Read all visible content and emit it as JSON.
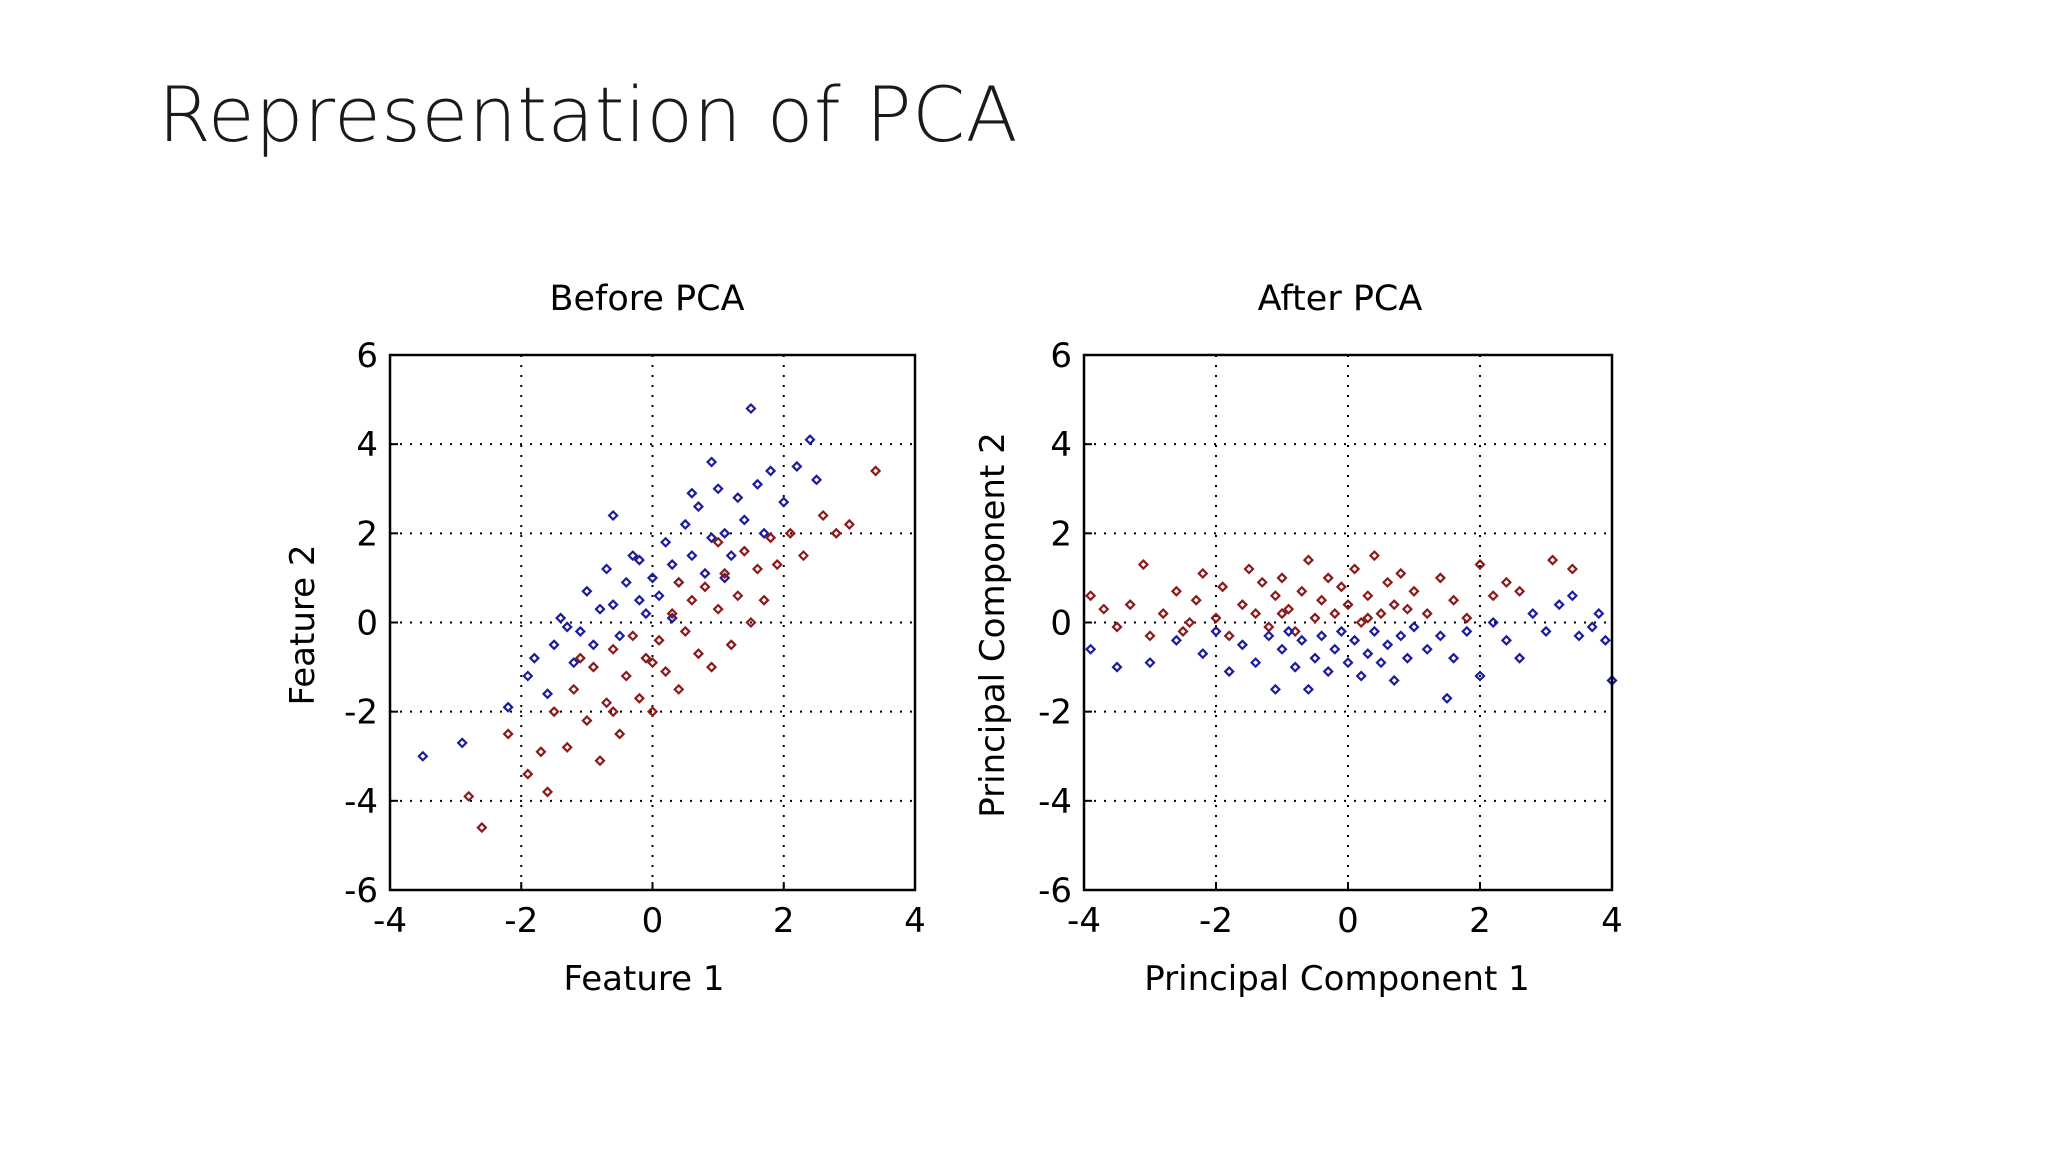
{
  "slide": {
    "title": "Representation of PCA"
  },
  "colors": {
    "class_a": "#8b1a1a",
    "class_b": "#1c1c9c"
  },
  "chart_data": [
    {
      "type": "scatter",
      "title": "Before PCA",
      "xlabel": "Feature 1",
      "ylabel": "Feature 2",
      "xlim": [
        -4,
        4
      ],
      "ylim": [
        -6,
        6
      ],
      "xticks": [
        "-4",
        "-2",
        "0",
        "2",
        "4"
      ],
      "yticks": [
        "-6",
        "-4",
        "-2",
        "0",
        "2",
        "4",
        "6"
      ],
      "xtick_values": [
        -4,
        -2,
        0,
        2,
        4
      ],
      "ytick_values": [
        -6,
        -4,
        -2,
        0,
        2,
        4,
        6
      ],
      "grid": true,
      "grid_style": "dotted",
      "marker": "diamond",
      "series": [
        {
          "color": "#1c1c9c",
          "values": [
            [
              -3.5,
              -3.0
            ],
            [
              -2.9,
              -2.7
            ],
            [
              -2.2,
              -1.9
            ],
            [
              -1.9,
              -1.2
            ],
            [
              -1.8,
              -0.8
            ],
            [
              -1.6,
              -1.6
            ],
            [
              -1.5,
              -0.5
            ],
            [
              -1.4,
              0.1
            ],
            [
              -1.2,
              -0.9
            ],
            [
              -1.1,
              -0.2
            ],
            [
              -1.0,
              0.7
            ],
            [
              -0.9,
              -0.5
            ],
            [
              -0.8,
              0.3
            ],
            [
              -0.7,
              1.2
            ],
            [
              -0.6,
              0.4
            ],
            [
              -0.5,
              -0.3
            ],
            [
              -0.4,
              0.9
            ],
            [
              -0.3,
              1.5
            ],
            [
              -0.2,
              0.5
            ],
            [
              -0.1,
              0.2
            ],
            [
              0.0,
              1.0
            ],
            [
              0.1,
              0.6
            ],
            [
              0.2,
              1.8
            ],
            [
              0.3,
              1.3
            ],
            [
              0.4,
              0.9
            ],
            [
              0.5,
              2.2
            ],
            [
              0.6,
              1.5
            ],
            [
              0.7,
              2.6
            ],
            [
              0.8,
              1.1
            ],
            [
              0.9,
              1.9
            ],
            [
              1.0,
              3.0
            ],
            [
              1.1,
              2.0
            ],
            [
              1.2,
              1.5
            ],
            [
              1.3,
              2.8
            ],
            [
              1.4,
              2.3
            ],
            [
              1.5,
              4.8
            ],
            [
              1.6,
              3.1
            ],
            [
              1.7,
              2.0
            ],
            [
              1.8,
              3.4
            ],
            [
              2.0,
              2.7
            ],
            [
              2.2,
              3.5
            ],
            [
              2.4,
              4.1
            ],
            [
              2.5,
              3.2
            ],
            [
              -0.6,
              2.4
            ],
            [
              0.3,
              0.1
            ],
            [
              -0.2,
              1.4
            ],
            [
              1.1,
              1.0
            ],
            [
              0.6,
              2.9
            ],
            [
              -1.3,
              -0.1
            ],
            [
              0.9,
              3.6
            ]
          ]
        },
        {
          "color": "#8b1a1a",
          "values": [
            [
              -2.8,
              -3.9
            ],
            [
              -2.6,
              -4.6
            ],
            [
              -2.2,
              -2.5
            ],
            [
              -1.9,
              -3.4
            ],
            [
              -1.7,
              -2.9
            ],
            [
              -1.6,
              -3.8
            ],
            [
              -1.5,
              -2.0
            ],
            [
              -1.3,
              -2.8
            ],
            [
              -1.2,
              -1.5
            ],
            [
              -1.0,
              -2.2
            ],
            [
              -0.9,
              -1.0
            ],
            [
              -0.8,
              -3.1
            ],
            [
              -0.7,
              -1.8
            ],
            [
              -0.6,
              -0.6
            ],
            [
              -0.5,
              -2.5
            ],
            [
              -0.4,
              -1.2
            ],
            [
              -0.3,
              -0.3
            ],
            [
              -0.2,
              -1.7
            ],
            [
              -0.1,
              -0.8
            ],
            [
              0.0,
              -2.0
            ],
            [
              0.1,
              -0.4
            ],
            [
              0.2,
              -1.1
            ],
            [
              0.3,
              0.2
            ],
            [
              0.4,
              -1.5
            ],
            [
              0.5,
              -0.2
            ],
            [
              0.6,
              0.5
            ],
            [
              0.7,
              -0.7
            ],
            [
              0.8,
              0.8
            ],
            [
              0.9,
              -1.0
            ],
            [
              1.0,
              0.3
            ],
            [
              1.1,
              1.1
            ],
            [
              1.2,
              -0.5
            ],
            [
              1.3,
              0.6
            ],
            [
              1.4,
              1.6
            ],
            [
              1.5,
              0.0
            ],
            [
              1.6,
              1.2
            ],
            [
              1.7,
              0.5
            ],
            [
              1.8,
              1.9
            ],
            [
              1.9,
              1.3
            ],
            [
              2.1,
              2.0
            ],
            [
              2.3,
              1.5
            ],
            [
              2.6,
              2.4
            ],
            [
              2.8,
              2.0
            ],
            [
              3.0,
              2.2
            ],
            [
              3.4,
              3.4
            ],
            [
              -1.1,
              -0.8
            ],
            [
              0.0,
              -0.9
            ],
            [
              -0.6,
              -2.0
            ],
            [
              0.4,
              0.9
            ],
            [
              1.0,
              1.8
            ]
          ]
        }
      ]
    },
    {
      "type": "scatter",
      "title": "After PCA",
      "xlabel": "Principal Component 1",
      "ylabel": "Principal Component 2",
      "xlim": [
        -4,
        4
      ],
      "ylim": [
        -6,
        6
      ],
      "xticks": [
        "-4",
        "-2",
        "0",
        "2",
        "4"
      ],
      "yticks": [
        "-6",
        "-4",
        "-2",
        "0",
        "2",
        "4",
        "6"
      ],
      "xtick_values": [
        -4,
        -2,
        0,
        2,
        4
      ],
      "ytick_values": [
        -6,
        -4,
        -2,
        0,
        2,
        4,
        6
      ],
      "grid": true,
      "grid_style": "dotted",
      "marker": "diamond",
      "series": [
        {
          "color": "#8b1a1a",
          "values": [
            [
              -3.9,
              0.6
            ],
            [
              -3.7,
              0.3
            ],
            [
              -3.5,
              -0.1
            ],
            [
              -3.3,
              0.4
            ],
            [
              -3.1,
              1.3
            ],
            [
              -3.0,
              -0.3
            ],
            [
              -2.8,
              0.2
            ],
            [
              -2.6,
              0.7
            ],
            [
              -2.5,
              -0.2
            ],
            [
              -2.3,
              0.5
            ],
            [
              -2.2,
              1.1
            ],
            [
              -2.0,
              0.1
            ],
            [
              -1.9,
              0.8
            ],
            [
              -1.8,
              -0.3
            ],
            [
              -1.6,
              0.4
            ],
            [
              -1.5,
              1.2
            ],
            [
              -1.4,
              0.2
            ],
            [
              -1.3,
              0.9
            ],
            [
              -1.2,
              -0.1
            ],
            [
              -1.1,
              0.6
            ],
            [
              -1.0,
              1.0
            ],
            [
              -0.9,
              0.3
            ],
            [
              -0.8,
              -0.2
            ],
            [
              -0.7,
              0.7
            ],
            [
              -0.6,
              1.4
            ],
            [
              -0.5,
              0.1
            ],
            [
              -0.4,
              0.5
            ],
            [
              -0.3,
              1.0
            ],
            [
              -0.2,
              0.2
            ],
            [
              -0.1,
              0.8
            ],
            [
              0.0,
              0.4
            ],
            [
              0.1,
              1.2
            ],
            [
              0.2,
              0.0
            ],
            [
              0.3,
              0.6
            ],
            [
              0.4,
              1.5
            ],
            [
              0.5,
              0.2
            ],
            [
              0.6,
              0.9
            ],
            [
              0.7,
              0.4
            ],
            [
              0.8,
              1.1
            ],
            [
              0.9,
              0.3
            ],
            [
              1.0,
              0.7
            ],
            [
              1.2,
              0.2
            ],
            [
              1.4,
              1.0
            ],
            [
              1.6,
              0.5
            ],
            [
              1.8,
              0.1
            ],
            [
              2.0,
              1.3
            ],
            [
              2.2,
              0.6
            ],
            [
              2.4,
              0.9
            ],
            [
              2.6,
              0.7
            ],
            [
              3.1,
              1.4
            ],
            [
              3.4,
              1.2
            ],
            [
              -2.4,
              0.0
            ],
            [
              -1.0,
              0.2
            ],
            [
              0.3,
              0.1
            ]
          ]
        },
        {
          "color": "#1c1c9c",
          "values": [
            [
              -3.9,
              -0.6
            ],
            [
              -3.5,
              -1.0
            ],
            [
              -3.0,
              -0.9
            ],
            [
              -2.6,
              -0.4
            ],
            [
              -2.2,
              -0.7
            ],
            [
              -2.0,
              -0.2
            ],
            [
              -1.8,
              -1.1
            ],
            [
              -1.6,
              -0.5
            ],
            [
              -1.4,
              -0.9
            ],
            [
              -1.2,
              -0.3
            ],
            [
              -1.1,
              -1.5
            ],
            [
              -1.0,
              -0.6
            ],
            [
              -0.9,
              -0.2
            ],
            [
              -0.8,
              -1.0
            ],
            [
              -0.7,
              -0.4
            ],
            [
              -0.6,
              -1.5
            ],
            [
              -0.5,
              -0.8
            ],
            [
              -0.4,
              -0.3
            ],
            [
              -0.3,
              -1.1
            ],
            [
              -0.2,
              -0.6
            ],
            [
              -0.1,
              -0.2
            ],
            [
              0.0,
              -0.9
            ],
            [
              0.1,
              -0.4
            ],
            [
              0.2,
              -1.2
            ],
            [
              0.3,
              -0.7
            ],
            [
              0.4,
              -0.2
            ],
            [
              0.5,
              -0.9
            ],
            [
              0.6,
              -0.5
            ],
            [
              0.7,
              -1.3
            ],
            [
              0.8,
              -0.3
            ],
            [
              0.9,
              -0.8
            ],
            [
              1.0,
              -0.1
            ],
            [
              1.2,
              -0.6
            ],
            [
              1.4,
              -0.3
            ],
            [
              1.5,
              -1.7
            ],
            [
              1.6,
              -0.8
            ],
            [
              1.8,
              -0.2
            ],
            [
              2.0,
              -1.2
            ],
            [
              2.2,
              0.0
            ],
            [
              2.4,
              -0.4
            ],
            [
              2.6,
              -0.8
            ],
            [
              2.8,
              0.2
            ],
            [
              3.0,
              -0.2
            ],
            [
              3.2,
              0.4
            ],
            [
              3.4,
              0.6
            ],
            [
              3.5,
              -0.3
            ],
            [
              3.7,
              -0.1
            ],
            [
              3.8,
              0.2
            ],
            [
              3.9,
              -0.4
            ],
            [
              4.0,
              -1.3
            ]
          ]
        }
      ]
    }
  ]
}
